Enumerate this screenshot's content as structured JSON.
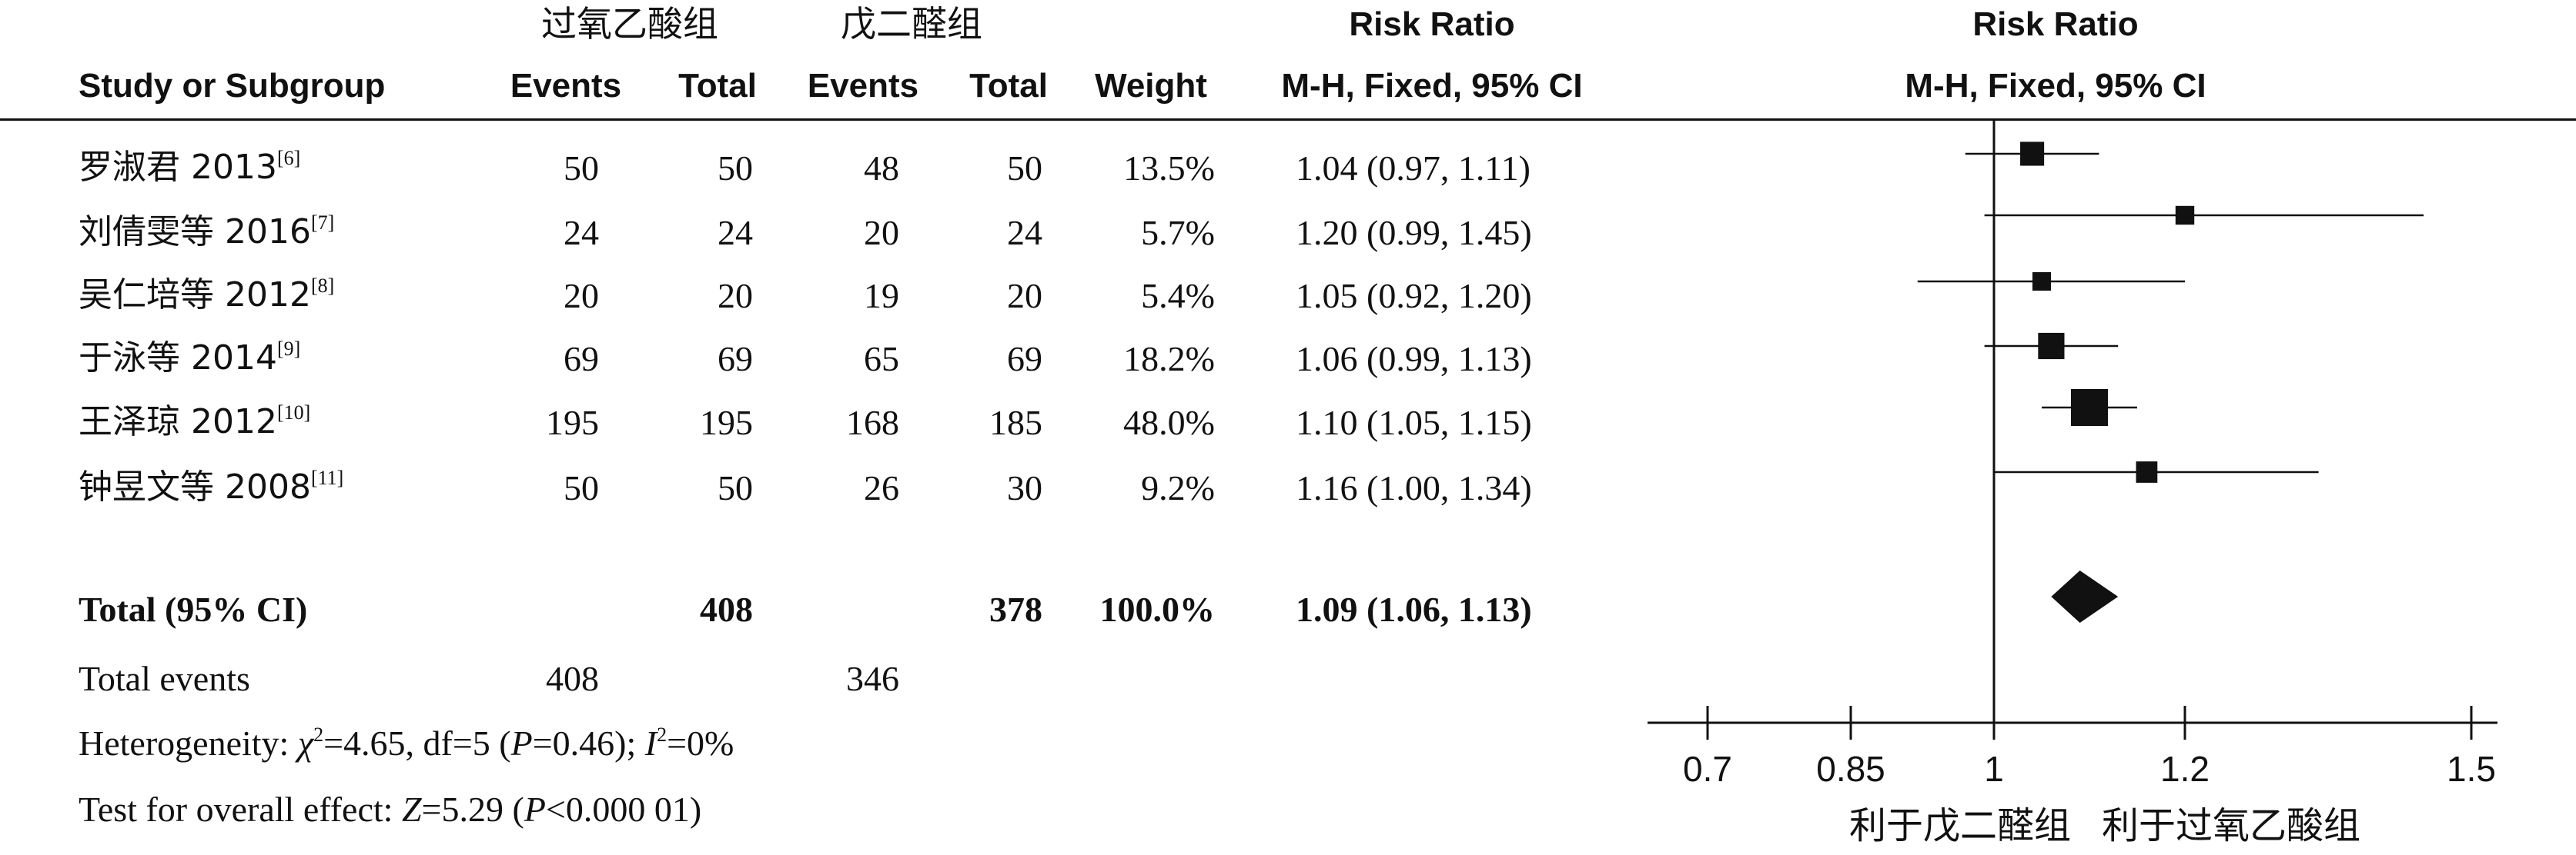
{
  "header": {
    "group1_name": "过氧乙酸组",
    "group2_name": "戊二醛组",
    "rr_top": "Risk Ratio",
    "rr_sub": "M-H, Fixed, 95% CI",
    "plot_top": "Risk Ratio",
    "plot_sub": "M-H, Fixed, 95% CI",
    "study_col": "Study or Subgroup",
    "events1": "Events",
    "total1": "Total",
    "events2": "Events",
    "total2": "Total",
    "weight": "Weight"
  },
  "studies": [
    {
      "name": "罗淑君 2013",
      "ref": "[6]",
      "e1": "50",
      "t1": "50",
      "e2": "48",
      "t2": "50",
      "weight": "13.5%",
      "ci": "1.04 (0.97, 1.11)"
    },
    {
      "name": "刘倩雯等 2016",
      "ref": "[7]",
      "e1": "24",
      "t1": "24",
      "e2": "20",
      "t2": "24",
      "weight": "5.7%",
      "ci": "1.20 (0.99, 1.45)"
    },
    {
      "name": "吴仁培等 2012",
      "ref": "[8]",
      "e1": "20",
      "t1": "20",
      "e2": "19",
      "t2": "20",
      "weight": "5.4%",
      "ci": "1.05 (0.92, 1.20)"
    },
    {
      "name": "于泳等 2014",
      "ref": "[9]",
      "e1": "69",
      "t1": "69",
      "e2": "65",
      "t2": "69",
      "weight": "18.2%",
      "ci": "1.06 (0.99, 1.13)"
    },
    {
      "name": "王泽琼 2012",
      "ref": "[10]",
      "e1": "195",
      "t1": "195",
      "e2": "168",
      "t2": "185",
      "weight": "48.0%",
      "ci": "1.10 (1.05, 1.15)"
    },
    {
      "name": "钟昱文等 2008",
      "ref": "[11]",
      "e1": "50",
      "t1": "50",
      "e2": "26",
      "t2": "30",
      "weight": "9.2%",
      "ci": "1.16 (1.00, 1.34)"
    }
  ],
  "total": {
    "label": "Total (95% CI)",
    "t1": "408",
    "t2": "378",
    "weight": "100.0%",
    "ci": "1.09 (1.06, 1.13)"
  },
  "total_events": {
    "label": "Total events",
    "e1": "408",
    "e2": "346"
  },
  "heterogeneity": {
    "prefix": "Heterogeneity: ",
    "chi": "χ",
    "chi_sup": "2",
    "chi_val": "=4.65, df=5 (",
    "p": "P",
    "p_val": "=0.46); ",
    "i": "I",
    "i_sup": "2",
    "i_val": "=0%"
  },
  "overall": {
    "prefix": "Test for overall effect: ",
    "z": "Z",
    "z_val": "=5.29 (",
    "p": "P",
    "p_val": "<0.000 01)"
  },
  "axis": {
    "favours_left": "利于戊二醛组",
    "favours_right": "利于过氧乙酸组"
  },
  "chart_data": {
    "type": "forest",
    "scale": "linear",
    "xlim": [
      0.7,
      1.5
    ],
    "ticks": [
      0.7,
      0.85,
      1,
      1.2,
      1.5
    ],
    "tick_labels": [
      "0.7",
      "0.85",
      "1",
      "1.2",
      "1.5"
    ],
    "null_line": 1,
    "studies": [
      {
        "name": "罗淑君 2013",
        "rr": 1.04,
        "lo": 0.97,
        "hi": 1.11,
        "weight": 13.5
      },
      {
        "name": "刘倩雯等 2016",
        "rr": 1.2,
        "lo": 0.99,
        "hi": 1.45,
        "weight": 5.7
      },
      {
        "name": "吴仁培等 2012",
        "rr": 1.05,
        "lo": 0.92,
        "hi": 1.2,
        "weight": 5.4
      },
      {
        "name": "于泳等 2014",
        "rr": 1.06,
        "lo": 0.99,
        "hi": 1.13,
        "weight": 18.2
      },
      {
        "name": "王泽琼 2012",
        "rr": 1.1,
        "lo": 1.05,
        "hi": 1.15,
        "weight": 48.0
      },
      {
        "name": "钟昱文等 2008",
        "rr": 1.16,
        "lo": 1.0,
        "hi": 1.34,
        "weight": 9.2
      }
    ],
    "pooled": {
      "rr": 1.09,
      "lo": 1.06,
      "hi": 1.13
    }
  }
}
